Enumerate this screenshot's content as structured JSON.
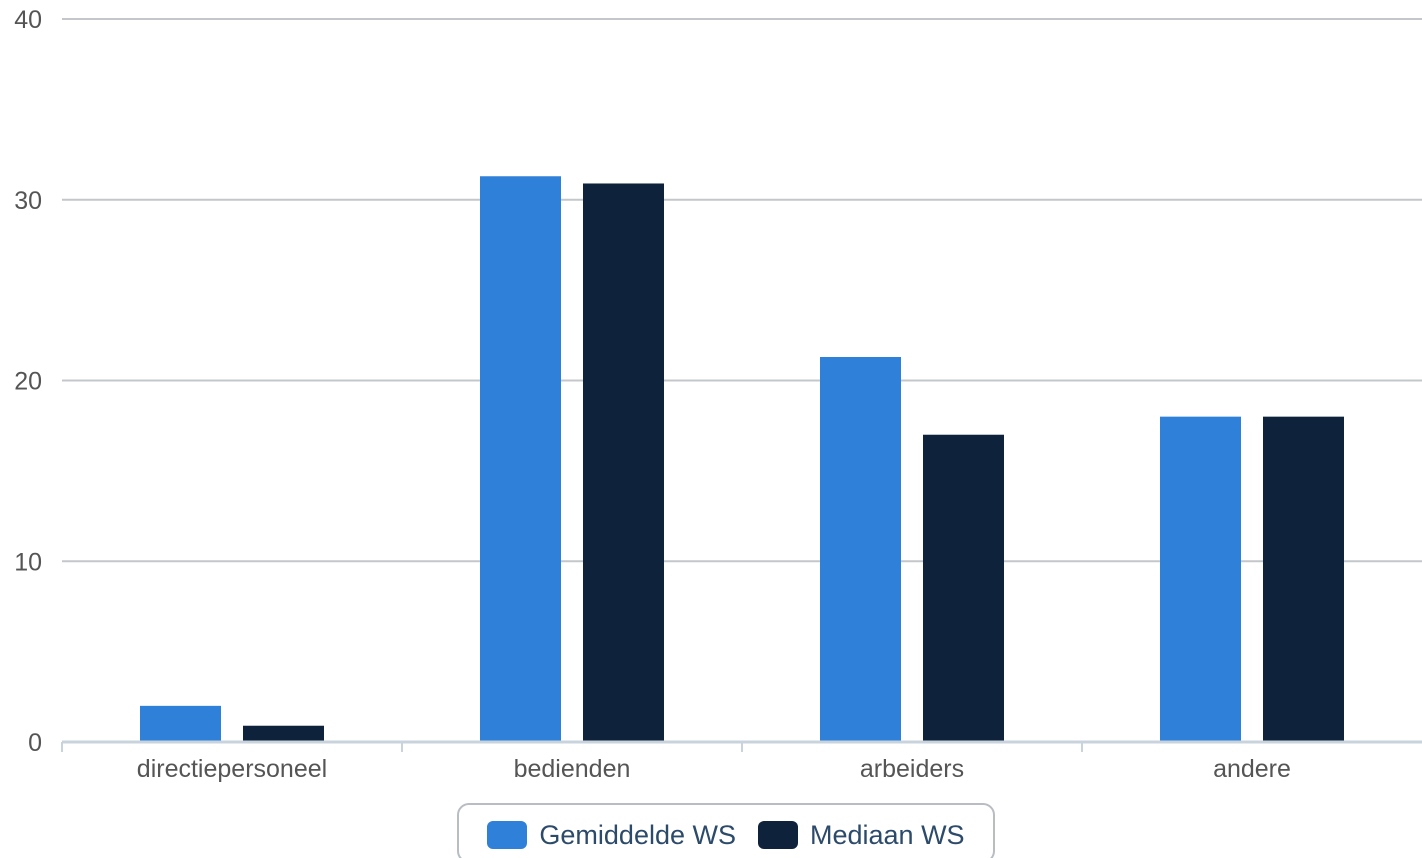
{
  "chart_data": {
    "type": "bar",
    "categories": [
      "directiepersoneel",
      "bedienden",
      "arbeiders",
      "andere"
    ],
    "series": [
      {
        "name": "Gemiddelde WS",
        "color": "#2f80d8",
        "values": [
          2.0,
          31.3,
          21.3,
          18.0
        ]
      },
      {
        "name": "Mediaan WS",
        "color": "#0e233b",
        "values": [
          0.9,
          30.9,
          17.0,
          18.0
        ]
      }
    ],
    "yticks": [
      "0",
      "10",
      "20",
      "30",
      "40"
    ],
    "ylim": [
      0,
      40
    ],
    "grid": true,
    "legend_position": "bottom-center"
  },
  "legend": {
    "items": [
      {
        "label": "Gemiddelde WS",
        "color": "#2f80d8"
      },
      {
        "label": "Mediaan WS",
        "color": "#0e233b"
      }
    ]
  }
}
